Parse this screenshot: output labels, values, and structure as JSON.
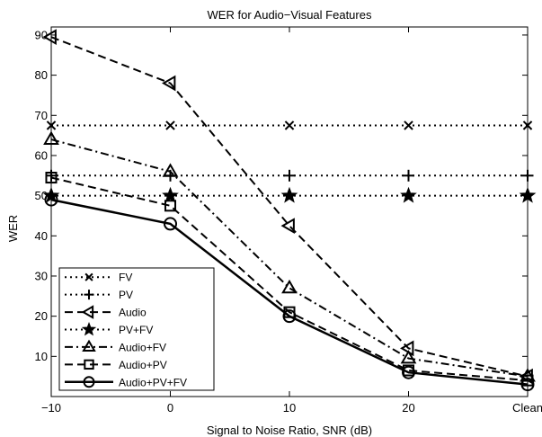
{
  "chart_data": {
    "type": "line",
    "title": "WER for Audio−Visual Features",
    "xlabel": "Signal to Noise Ratio, SNR (dB)",
    "ylabel": "WER",
    "categories": [
      "−10",
      "0",
      "10",
      "20",
      "Clean"
    ],
    "xlim": [
      0,
      4
    ],
    "ylim": [
      0,
      92
    ],
    "yticks": [
      10,
      20,
      30,
      40,
      50,
      60,
      70,
      80,
      90
    ],
    "grid": false,
    "legend_position": "bottom-left",
    "series": [
      {
        "name": "FV",
        "values": [
          67.5,
          67.5,
          67.5,
          67.5,
          67.5
        ],
        "dash": "dotted",
        "marker": "x"
      },
      {
        "name": "PV",
        "values": [
          55,
          55,
          55,
          55,
          55
        ],
        "dash": "dotted",
        "marker": "plus"
      },
      {
        "name": "Audio",
        "values": [
          89.5,
          78,
          42.5,
          12,
          5
        ],
        "dash": "dashed",
        "marker": "triangle-left"
      },
      {
        "name": "PV+FV",
        "values": [
          50,
          50,
          50,
          50,
          50
        ],
        "dash": "dotted",
        "marker": "star"
      },
      {
        "name": "Audio+FV",
        "values": [
          64,
          56,
          27,
          9.5,
          5
        ],
        "dash": "dashdot",
        "marker": "triangle-up"
      },
      {
        "name": "Audio+PV",
        "values": [
          54.5,
          47.5,
          21,
          6.5,
          4
        ],
        "dash": "dashed",
        "marker": "square"
      },
      {
        "name": "Audio+PV+FV",
        "values": [
          49,
          43,
          20,
          6,
          3
        ],
        "dash": "solid",
        "marker": "circle"
      }
    ]
  }
}
